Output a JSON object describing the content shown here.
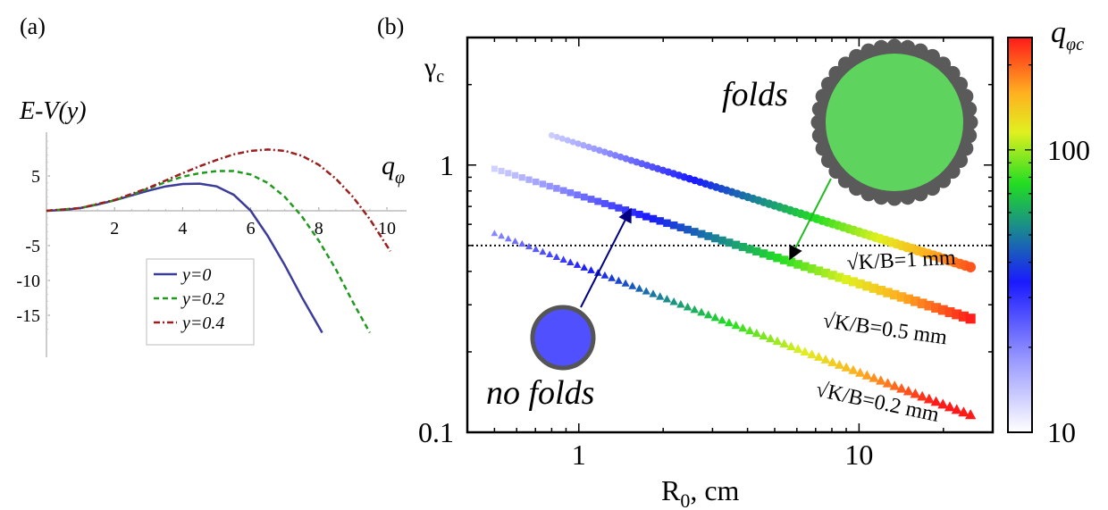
{
  "chart_data": [
    {
      "panel_label": "(a)",
      "type": "line",
      "ylabel": "E-V(y)",
      "xlabel": "qφ",
      "xlim": [
        0,
        10.5
      ],
      "ylim": [
        -17.5,
        10
      ],
      "x_ticks": [
        2,
        4,
        6,
        8,
        10
      ],
      "y_ticks": [
        5,
        -5,
        -10,
        -15
      ],
      "legend_position": "bottom-center",
      "series": [
        {
          "name": "y=0",
          "color": "#3b3b9a",
          "dash": "solid",
          "x": [
            0,
            0.5,
            1,
            1.5,
            2,
            2.5,
            3,
            3.5,
            4,
            4.5,
            5,
            5.5,
            6,
            6.5,
            7,
            7.5,
            8.1
          ],
          "y": [
            0,
            0.11,
            0.4,
            0.9,
            1.5,
            2.2,
            2.9,
            3.5,
            3.85,
            3.9,
            3.5,
            2.3,
            0.0,
            -3.6,
            -7.8,
            -12.4,
            -17.5
          ]
        },
        {
          "name": "y=0.2",
          "color": "#1f9a1f",
          "dash": "6,4",
          "x": [
            0,
            1,
            2,
            2.5,
            3,
            3.5,
            4,
            4.5,
            5,
            5.5,
            6,
            6.5,
            7,
            7.5,
            8,
            8.5,
            9,
            9.5
          ],
          "y": [
            0,
            0.4,
            1.5,
            2.3,
            3.2,
            4.1,
            4.9,
            5.4,
            5.7,
            5.7,
            5.2,
            4.0,
            2.0,
            -0.8,
            -4.3,
            -8.4,
            -13.1,
            -18.2
          ]
        },
        {
          "name": "y=0.4",
          "color": "#9a1f1f",
          "dash": "7,3,2,3",
          "x": [
            0,
            1,
            2,
            3,
            4,
            4.5,
            5,
            5.5,
            6,
            6.5,
            7,
            7.5,
            8,
            8.5,
            9,
            9.5,
            10.1
          ],
          "y": [
            0,
            0.4,
            1.55,
            3.3,
            5.4,
            6.4,
            7.3,
            8.1,
            8.6,
            8.8,
            8.6,
            7.9,
            6.6,
            4.6,
            2.0,
            -1.2,
            -5.8
          ]
        }
      ]
    },
    {
      "panel_label": "(b)",
      "type": "scatter",
      "xlabel": "R0, cm",
      "ylabel": "γc",
      "x_scale": "log",
      "y_scale": "log",
      "xlim": [
        0.4,
        30
      ],
      "ylim": [
        0.1,
        3
      ],
      "x_tick_labels": [
        "1",
        "10"
      ],
      "y_tick_labels": [
        "1",
        "0.1"
      ],
      "hline": 0.5,
      "colorbar": {
        "label": "qφc",
        "scale": "log",
        "min": 10,
        "max": 250,
        "tick_labels": [
          "10",
          "100"
        ]
      },
      "series": [
        {
          "name": "√K/B=1 mm",
          "marker": "circle",
          "x_range": [
            0.8,
            25
          ],
          "points": 80,
          "y_at_1": 1.2,
          "slope": -0.33,
          "q_at_1": 16,
          "q_slope": 0.8
        },
        {
          "name": "√K/B=0.5 mm",
          "marker": "square",
          "x_range": [
            0.5,
            25
          ],
          "points": 70,
          "y_at_1": 0.77,
          "slope": -0.33,
          "q_at_1": 22,
          "q_slope": 0.75
        },
        {
          "name": "√K/B=0.2 mm",
          "marker": "triangle",
          "x_range": [
            0.5,
            25
          ],
          "points": 70,
          "y_at_1": 0.42,
          "slope": -0.4,
          "q_at_1": 32,
          "q_slope": 0.7
        }
      ],
      "annotations": {
        "folds": "folds",
        "no_folds": "no folds"
      }
    }
  ]
}
